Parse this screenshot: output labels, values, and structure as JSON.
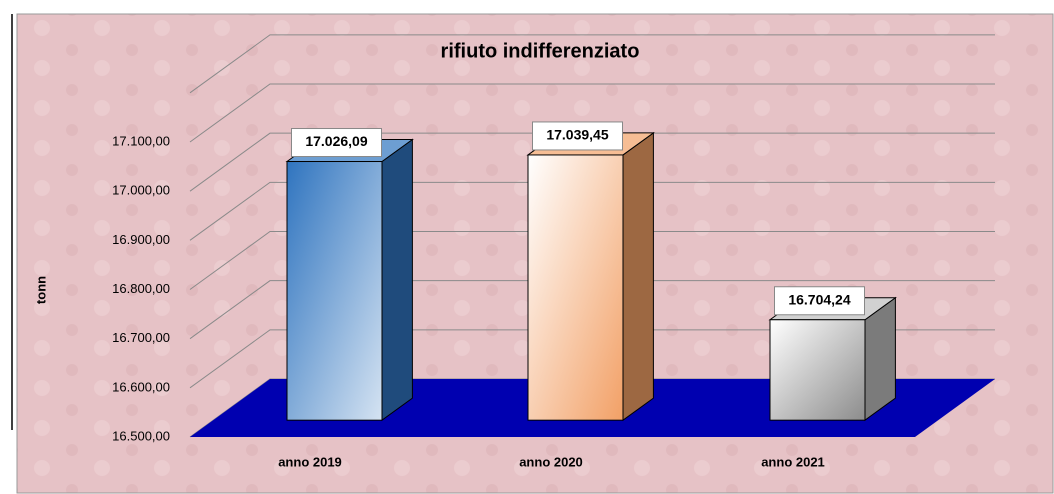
{
  "chart_data": {
    "type": "bar3d",
    "title": "rifiuto indifferenziato",
    "y_label": "tonn",
    "categories": [
      "anno 2019",
      "anno 2020",
      "anno 2021"
    ],
    "values": [
      17026.09,
      17039.45,
      16704.24
    ],
    "value_labels": [
      "17.026,09",
      "17.039,45",
      "16.704,24"
    ],
    "colors": [
      "#2f74bf",
      "#f2a066",
      "#bdbdbd"
    ],
    "floor_color": "#0000b0",
    "ylim": [
      16500,
      17200
    ],
    "yticks": [
      {
        "value": 16500,
        "label": "16.500,00"
      },
      {
        "value": 16600,
        "label": "16.600,00"
      },
      {
        "value": 16700,
        "label": "16.700,00"
      },
      {
        "value": 16800,
        "label": "16.800,00"
      },
      {
        "value": 16900,
        "label": "16.900,00"
      },
      {
        "value": 17000,
        "label": "17.000,00"
      },
      {
        "value": 17100,
        "label": "17.100,00"
      }
    ],
    "grid": true
  }
}
